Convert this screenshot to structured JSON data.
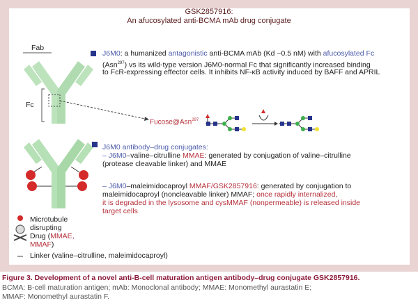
{
  "figure": {
    "title_line1": "GSK2857916:",
    "title_line2": "An afucosylated anti-BCMA mAb drug conjugate",
    "labels": {
      "fab": "Fab",
      "fc": "Fc",
      "fucose": "Fucose@Asn",
      "fucose_sup": "297"
    },
    "bullet1": {
      "l1a": "J6M0",
      "l1b": ": a humanized ",
      "l1c": "antagonistic",
      "l1d": " anti-BCMA mAb (Kd ~0.5 nM) with ",
      "l1e": "afucosylated Fc",
      "l2a": "(Asn",
      "l2sup": "297",
      "l2b": ") vs its wild-type version J6M0-normal Fc that significantly increased binding",
      "l3": "to FcR-expressing effector cells. It inhibits NF-κB activity induced by BAFF and APRIL"
    },
    "bullet2": {
      "head": "J6M0 antibody–drug conjugates:",
      "s1a": "– J6M0",
      "s1b": "–valine–citrulline ",
      "s1c": "MMAE",
      "s1d": ": generated by conjugation of valine–citrulline",
      "s1e": "(protease cleavable linker) and MMAE",
      "s2a": "– J6M0",
      "s2b": "–maleimidocaproyl ",
      "s2c": "MMAF/GSK2857916",
      "s2d": ": generated by conjugation to",
      "s2e": "maleimidocaproyl (noncleavable linker) MMAF; ",
      "s2f": "once rapidly internalized,",
      "s2g": "it is degraded in the lysosome and cysMMAF (nonpermeable) is released inside",
      "s2h": "target cells"
    },
    "legend": {
      "l1": "Microtubule",
      "l2": "disrupting",
      "l3a": "Drug (",
      "l3b": "MMAE,",
      "l4a": "MMAF",
      "l4b": ")",
      "linker": "Linker (valine–citrulline, maleimidocaproyl)"
    },
    "colors": {
      "antibody": "#a8d8a8",
      "drug": "#d42a2a",
      "glcnac": "#27348b",
      "mannose": "#3cb04a",
      "galactose": "#f0e030",
      "fucose": "#d42a2a"
    }
  },
  "caption": {
    "title": "Figure 3. Development of a novel anti-B-cell maturation antigen antibody–drug conjugate GSK2857916.",
    "line2": "BCMA: B-cell maturation antigen; mAb: Monoclonal antibody; MMAE: Monomethyl aurastatin E;",
    "line3": "MMAF: Monomethyl aurastatin F."
  }
}
